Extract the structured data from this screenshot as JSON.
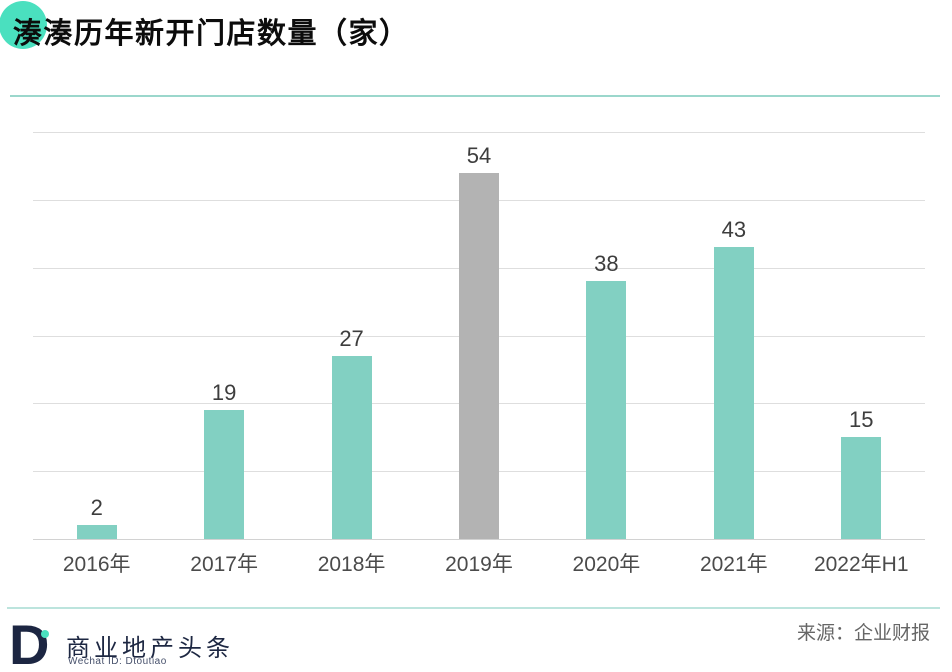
{
  "title": "湊湊历年新开门店数量（家）",
  "source": "来源：企业财报",
  "footer": {
    "logo_letter": "D",
    "brand": "商业地产头条",
    "wechat": "Wechat ID: Dtoutiao"
  },
  "colors": {
    "accent_circle": "#4ae0bf",
    "bar": "#82d0c2",
    "bar_highlight": "#b3b3b3",
    "divider_top": "#9bd7cc",
    "divider_bottom": "#bce4dd",
    "logo_navy": "#1c2642"
  },
  "chart_data": {
    "type": "bar",
    "title": "湊湊历年新开门店数量（家）",
    "categories": [
      "2016年",
      "2017年",
      "2018年",
      "2019年",
      "2020年",
      "2021年",
      "2022年H1"
    ],
    "values": [
      2,
      19,
      27,
      54,
      38,
      43,
      15
    ],
    "highlight_index": 3,
    "highlight_note": "2019年 bar is gray, all others teal",
    "xlabel": "",
    "ylabel": "",
    "ylim": [
      0,
      60
    ],
    "grid": true,
    "gridline_step": 10,
    "legend": "none",
    "data_labels": true
  }
}
